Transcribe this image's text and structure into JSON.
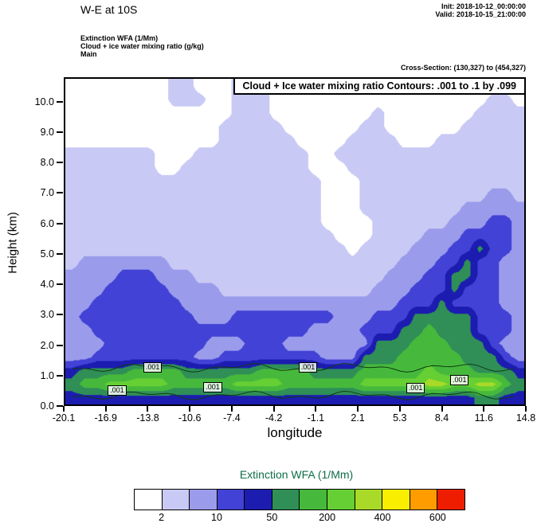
{
  "header": {
    "title": "W-E at 10S",
    "init": "Init: 2018-10-12_00:00:00",
    "valid": "Valid: 2018-10-15_21:00:00",
    "line1": "Extinction WFA  (1/Mm)",
    "line2": "Cloud + ice water mixing ratio   (g/kg)",
    "line3": "Main",
    "cross_section": "Cross-Section: (130,327) to (454,327)"
  },
  "chart_data": {
    "type": "heatmap",
    "title": "Cloud + Ice water mixing ratio Contours: .001 to .1 by .099",
    "xlabel": "longitude",
    "ylabel": "Height (km)",
    "x_ticks": [
      "-20.1",
      "-16.9",
      "-13.8",
      "-10.6",
      "-7.4",
      "-4.2",
      "-1.1",
      "2.1",
      "5.3",
      "8.4",
      "11.6",
      "14.8"
    ],
    "y_ticks": [
      "0.0",
      "1.0",
      "2.0",
      "3.0",
      "4.0",
      "5.0",
      "6.0",
      "7.0",
      "8.0",
      "9.0",
      "10.0"
    ],
    "xlim": [
      -20.1,
      14.8
    ],
    "ylim": [
      0,
      10.8
    ],
    "grid_on": false,
    "field_name": "Extinction WFA (1/Mm)",
    "grid": {
      "ncols": 36,
      "nrows": 24,
      "comment": "level index per cell, rows top(10.8km) to bottom(0km); levels map to first 9 legend colors",
      "values": [
        [
          0,
          0,
          0,
          0,
          0,
          0,
          0,
          0,
          1,
          1,
          0,
          0,
          0,
          1,
          1,
          1,
          0,
          0,
          0,
          0,
          0,
          0,
          0,
          0,
          0,
          0,
          0,
          0,
          0,
          0,
          0,
          0,
          0,
          0,
          0,
          0
        ],
        [
          0,
          0,
          0,
          0,
          0,
          0,
          0,
          0,
          1,
          1,
          1,
          0,
          0,
          1,
          1,
          1,
          0,
          0,
          0,
          0,
          0,
          0,
          0,
          0,
          0,
          0,
          0,
          0,
          0,
          0,
          0,
          0,
          0,
          1,
          1,
          0
        ],
        [
          0,
          0,
          0,
          0,
          0,
          0,
          0,
          0,
          0,
          0,
          0,
          0,
          0,
          1,
          1,
          1,
          0,
          0,
          0,
          0,
          0,
          0,
          0,
          0,
          1,
          0,
          0,
          0,
          0,
          0,
          0,
          0,
          1,
          1,
          1,
          1
        ],
        [
          0,
          0,
          0,
          0,
          0,
          0,
          0,
          0,
          0,
          0,
          0,
          0,
          1,
          1,
          1,
          1,
          1,
          0,
          0,
          0,
          0,
          0,
          0,
          1,
          1,
          0,
          0,
          0,
          0,
          0,
          0,
          1,
          1,
          1,
          1,
          1
        ],
        [
          0,
          0,
          0,
          0,
          0,
          0,
          0,
          0,
          0,
          0,
          0,
          0,
          1,
          1,
          1,
          1,
          1,
          1,
          0,
          0,
          0,
          0,
          1,
          1,
          1,
          1,
          0,
          0,
          0,
          1,
          1,
          1,
          1,
          1,
          1,
          1
        ],
        [
          1,
          1,
          1,
          1,
          1,
          1,
          1,
          0,
          0,
          0,
          1,
          1,
          1,
          1,
          1,
          1,
          1,
          1,
          1,
          0,
          0,
          1,
          1,
          1,
          1,
          1,
          1,
          1,
          1,
          1,
          1,
          1,
          1,
          1,
          1,
          1
        ],
        [
          1,
          1,
          1,
          1,
          1,
          1,
          1,
          0,
          0,
          1,
          1,
          1,
          1,
          1,
          1,
          1,
          1,
          1,
          1,
          0,
          0,
          0,
          1,
          1,
          1,
          1,
          1,
          1,
          1,
          1,
          1,
          1,
          1,
          1,
          1,
          1
        ],
        [
          1,
          1,
          1,
          1,
          1,
          1,
          1,
          1,
          1,
          1,
          1,
          1,
          1,
          1,
          1,
          1,
          1,
          1,
          1,
          1,
          0,
          0,
          0,
          1,
          1,
          1,
          1,
          1,
          1,
          1,
          1,
          1,
          1,
          1,
          1,
          1
        ],
        [
          1,
          1,
          1,
          1,
          1,
          1,
          1,
          1,
          1,
          1,
          1,
          1,
          1,
          1,
          1,
          1,
          1,
          1,
          1,
          1,
          0,
          0,
          0,
          1,
          1,
          1,
          1,
          1,
          1,
          1,
          1,
          1,
          1,
          2,
          2,
          1
        ],
        [
          1,
          1,
          1,
          1,
          1,
          1,
          1,
          1,
          1,
          1,
          1,
          1,
          1,
          1,
          1,
          1,
          1,
          1,
          1,
          1,
          0,
          0,
          0,
          1,
          1,
          1,
          1,
          1,
          1,
          1,
          1,
          2,
          2,
          2,
          2,
          2
        ],
        [
          1,
          1,
          1,
          1,
          1,
          1,
          1,
          1,
          1,
          1,
          1,
          1,
          1,
          1,
          1,
          1,
          1,
          1,
          1,
          1,
          0,
          0,
          0,
          0,
          1,
          1,
          1,
          1,
          1,
          1,
          2,
          2,
          2,
          3,
          3,
          2
        ],
        [
          1,
          1,
          1,
          1,
          1,
          1,
          1,
          1,
          1,
          1,
          1,
          1,
          1,
          1,
          1,
          1,
          1,
          1,
          1,
          1,
          1,
          0,
          0,
          0,
          1,
          1,
          1,
          1,
          2,
          2,
          2,
          3,
          3,
          3,
          3,
          2
        ],
        [
          1,
          1,
          1,
          1,
          1,
          1,
          1,
          1,
          1,
          1,
          1,
          1,
          1,
          1,
          1,
          1,
          1,
          1,
          1,
          1,
          1,
          1,
          0,
          1,
          1,
          1,
          1,
          2,
          2,
          2,
          3,
          3,
          5,
          3,
          3,
          2
        ],
        [
          1,
          2,
          2,
          2,
          2,
          2,
          2,
          2,
          1,
          1,
          1,
          1,
          1,
          1,
          1,
          1,
          1,
          1,
          1,
          1,
          1,
          1,
          1,
          1,
          1,
          1,
          2,
          2,
          2,
          3,
          3,
          5,
          3,
          3,
          2,
          2
        ],
        [
          2,
          2,
          2,
          2,
          3,
          3,
          3,
          2,
          2,
          2,
          1,
          1,
          1,
          1,
          1,
          1,
          1,
          1,
          1,
          1,
          1,
          1,
          1,
          1,
          1,
          2,
          2,
          2,
          3,
          3,
          5,
          5,
          3,
          3,
          2,
          2
        ],
        [
          2,
          2,
          2,
          3,
          3,
          3,
          3,
          3,
          2,
          2,
          2,
          2,
          1,
          1,
          1,
          1,
          1,
          1,
          1,
          1,
          1,
          1,
          1,
          1,
          2,
          2,
          2,
          3,
          3,
          3,
          5,
          3,
          3,
          3,
          2,
          2
        ],
        [
          2,
          2,
          3,
          3,
          3,
          3,
          3,
          3,
          3,
          2,
          2,
          2,
          2,
          2,
          2,
          2,
          2,
          2,
          2,
          2,
          2,
          2,
          2,
          2,
          2,
          2,
          3,
          3,
          3,
          5,
          3,
          3,
          3,
          3,
          2,
          2
        ],
        [
          2,
          3,
          3,
          3,
          3,
          3,
          3,
          3,
          3,
          3,
          2,
          2,
          2,
          3,
          3,
          3,
          3,
          3,
          3,
          3,
          3,
          2,
          2,
          2,
          3,
          3,
          3,
          5,
          5,
          5,
          5,
          5,
          3,
          3,
          3,
          2
        ],
        [
          2,
          2,
          3,
          3,
          3,
          3,
          3,
          3,
          3,
          3,
          3,
          3,
          3,
          3,
          3,
          3,
          3,
          3,
          3,
          2,
          2,
          2,
          2,
          3,
          3,
          3,
          5,
          5,
          6,
          5,
          5,
          5,
          3,
          3,
          3,
          2
        ],
        [
          2,
          2,
          2,
          3,
          3,
          3,
          3,
          3,
          3,
          3,
          3,
          2,
          2,
          2,
          3,
          3,
          3,
          2,
          2,
          2,
          2,
          2,
          2,
          2,
          5,
          5,
          5,
          6,
          6,
          6,
          5,
          5,
          5,
          3,
          2,
          2
        ],
        [
          2,
          2,
          3,
          3,
          3,
          3,
          3,
          3,
          3,
          3,
          2,
          2,
          3,
          3,
          3,
          3,
          3,
          3,
          3,
          3,
          2,
          2,
          2,
          5,
          5,
          5,
          6,
          6,
          6,
          6,
          6,
          5,
          5,
          5,
          3,
          2
        ],
        [
          4,
          5,
          5,
          5,
          5,
          6,
          6,
          6,
          6,
          5,
          5,
          5,
          5,
          5,
          5,
          6,
          6,
          6,
          6,
          5,
          5,
          5,
          5,
          6,
          6,
          6,
          6,
          6,
          7,
          6,
          6,
          6,
          5,
          5,
          5,
          4
        ],
        [
          5,
          6,
          6,
          7,
          7,
          7,
          7,
          7,
          6,
          6,
          6,
          6,
          6,
          7,
          7,
          7,
          7,
          6,
          6,
          6,
          6,
          6,
          6,
          7,
          7,
          7,
          7,
          7,
          8,
          8,
          7,
          7,
          8,
          8,
          6,
          5
        ],
        [
          4,
          4,
          4,
          4,
          4,
          4,
          4,
          4,
          4,
          4,
          4,
          4,
          4,
          4,
          4,
          4,
          4,
          4,
          4,
          4,
          4,
          4,
          4,
          4,
          4,
          4,
          4,
          4,
          4,
          4,
          4,
          4,
          5,
          5,
          4,
          4
        ]
      ]
    },
    "mixing_ratio_contours": {
      "value": ".001",
      "heights_km": [
        1.22,
        0.3
      ]
    },
    "contour_labels": [
      {
        "text": ".001",
        "fx": 0.198,
        "fy": 0.884
      },
      {
        "text": ".001",
        "fx": 0.534,
        "fy": 0.884
      },
      {
        "text": ".001",
        "fx": 0.862,
        "fy": 0.922
      },
      {
        "text": ".001",
        "fx": 0.328,
        "fy": 0.944
      },
      {
        "text": ".001",
        "fx": 0.767,
        "fy": 0.947
      },
      {
        "text": ".001",
        "fx": 0.121,
        "fy": 0.954
      }
    ],
    "legend": {
      "title": "Extinction WFA  (1/Mm)",
      "title_color": "#0e6e46",
      "colors": [
        "#ffffff",
        "#c9c9f5",
        "#9b9bec",
        "#4242d6",
        "#1c1cb0",
        "#2f8f57",
        "#46b93c",
        "#65cf33",
        "#a9da28",
        "#f9ee00",
        "#ff9c00",
        "#ee1d00"
      ],
      "labels": [
        "2",
        "10",
        "50",
        "200",
        "400",
        "600"
      ]
    }
  }
}
